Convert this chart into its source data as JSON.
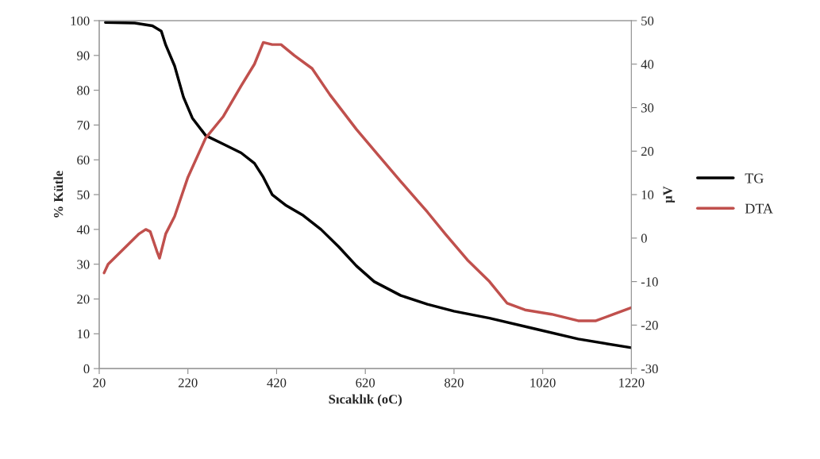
{
  "chart_data": {
    "type": "line",
    "xlabel": "Sıcaklık (oC)",
    "ylabel": "% Kütle",
    "y2label": "µV",
    "xlim": [
      20,
      1220
    ],
    "xticks": [
      20,
      220,
      420,
      620,
      820,
      1020,
      1220
    ],
    "ylim": [
      0,
      100
    ],
    "yticks": [
      0,
      10,
      20,
      30,
      40,
      50,
      60,
      70,
      80,
      90,
      100
    ],
    "y2lim": [
      -30,
      50
    ],
    "y2ticks": [
      -30,
      -20,
      -10,
      0,
      10,
      20,
      30,
      40,
      50
    ],
    "grid": false,
    "legend": "right",
    "marker": "none",
    "line_style": "solid",
    "series": [
      {
        "name": "TG",
        "color": "#000000",
        "x": [
          34,
          100,
          140,
          160,
          170,
          190,
          210,
          230,
          260,
          300,
          340,
          370,
          390,
          410,
          440,
          480,
          520,
          560,
          600,
          640,
          700,
          760,
          820,
          900,
          1000,
          1100,
          1220
        ],
        "values": [
          99.5,
          99.3,
          98.5,
          97,
          93,
          87,
          78,
          72,
          67,
          64.5,
          62,
          59,
          55,
          50,
          47,
          44,
          40,
          35,
          29.5,
          25,
          21,
          18.5,
          16.5,
          14.5,
          11.5,
          8.5,
          6
        ]
      },
      {
        "name": "DTA",
        "color": "#c0504d",
        "axis": "y2",
        "x": [
          31,
          40,
          80,
          110,
          125,
          135,
          150,
          156,
          170,
          190,
          220,
          260,
          300,
          340,
          370,
          390,
          410,
          430,
          460,
          500,
          540,
          600,
          650,
          700,
          760,
          800,
          850,
          900,
          940,
          980,
          1040,
          1080,
          1100,
          1140,
          1180,
          1220
        ],
        "values": [
          -8,
          -6,
          -2,
          1,
          2,
          1.5,
          -3,
          -4.6,
          1,
          5,
          14,
          23,
          28,
          35,
          40,
          45,
          44.5,
          44.5,
          42,
          39,
          33,
          25,
          19,
          13,
          6,
          1,
          -5,
          -10,
          -15,
          -16.5,
          -17.5,
          -18.5,
          -19,
          -19,
          -17.5,
          -16
        ]
      }
    ]
  }
}
